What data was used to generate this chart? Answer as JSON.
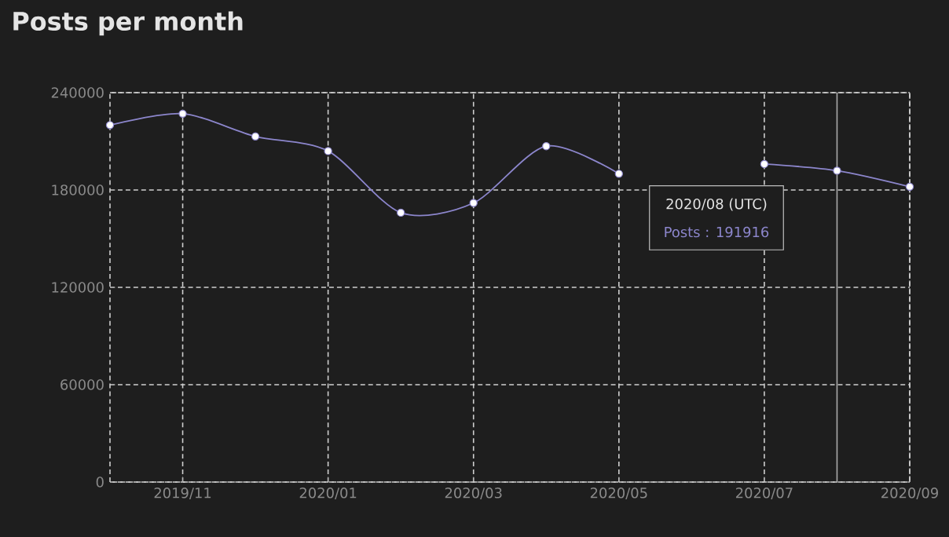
{
  "chart_data": {
    "type": "line",
    "title": "Posts per month",
    "x": [
      "2019-10",
      "2019-11",
      "2019-12",
      "2020-01",
      "2020-02",
      "2020-03",
      "2020-04",
      "2020-05",
      "2020-06",
      "2020-07",
      "2020-08",
      "2020-09"
    ],
    "series": [
      {
        "color": "#8c86cc",
        "values": [
          220000,
          227000,
          213000,
          204000,
          166000,
          172000,
          207000,
          190000,
          null,
          196000,
          191916,
          182000
        ]
      }
    ],
    "xlim": [
      "2019-10",
      "2020-09"
    ],
    "xticks": [
      {
        "value": "2019-11",
        "label": "2019/11"
      },
      {
        "value": "2020-01",
        "label": "2020/01"
      },
      {
        "value": "2020-03",
        "label": "2020/03"
      },
      {
        "value": "2020-05",
        "label": "2020/05"
      },
      {
        "value": "2020-07",
        "label": "2020/07"
      },
      {
        "value": "2020-09",
        "label": "2020/09"
      }
    ],
    "ylim": [
      0,
      240000
    ],
    "yticks": [
      0,
      60000,
      120000,
      180000,
      240000
    ],
    "grid": true,
    "marker": "circle",
    "line_style": "solid",
    "ref_lines": [
      {
        "axis": "x",
        "value": "2020-08",
        "color": "#aaaaaa"
      }
    ],
    "annotations": [
      "2020/08 (UTC)",
      "Posts : 191916"
    ]
  }
}
